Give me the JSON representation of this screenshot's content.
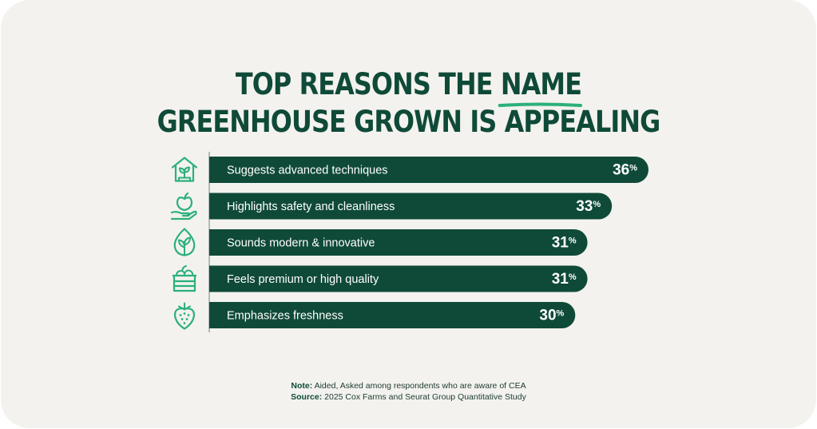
{
  "title": {
    "line1_before": "TOP REASONS THE ",
    "line1_highlight": "NAME",
    "line2": "GREENHOUSE GROWN IS APPEALING"
  },
  "chart_data": {
    "type": "bar",
    "orientation": "horizontal",
    "categories": [
      "Suggests advanced techniques",
      "Highlights safety and cleanliness",
      "Sounds modern & innovative",
      "Feels premium or high quality",
      "Emphasizes freshness"
    ],
    "values": [
      36,
      33,
      31,
      31,
      30
    ],
    "value_suffix": "%",
    "icons": [
      "greenhouse-icon",
      "hand-apple-icon",
      "leaf-icon",
      "crate-icon",
      "strawberry-icon"
    ],
    "colors": {
      "bar": "#0f4a38",
      "icon": "#2bb07a",
      "text": "#ffffff"
    }
  },
  "footnote": {
    "note_label": "Note:",
    "note_text": " Aided, Asked among respondents who are aware of CEA",
    "source_label": "Source:",
    "source_text": " 2025 Cox Farms and Seurat Group Quantitative Study"
  }
}
